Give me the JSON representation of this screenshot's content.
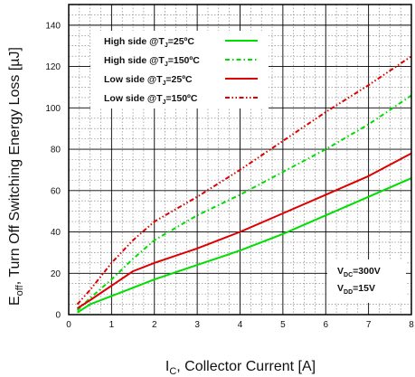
{
  "chart_data": {
    "type": "line",
    "xlabel": {
      "main": "I",
      "sub": "C",
      "rest": ", Collector Current [A]"
    },
    "ylabel": {
      "main": "E",
      "sub": "off",
      "rest": ", Turn Off Switching Energy Loss [µJ]"
    },
    "xlim": [
      0,
      8
    ],
    "ylim": [
      0,
      150
    ],
    "xticks": [
      0,
      1,
      2,
      3,
      4,
      5,
      6,
      7,
      8
    ],
    "yticks": [
      0,
      20,
      40,
      60,
      80,
      100,
      120,
      140
    ],
    "grid": true,
    "legend_position": "top-left",
    "series": [
      {
        "name": "High side @T J =25ºC",
        "name_parts": {
          "pre": "High side @T",
          "sub": "J",
          "post": "=25ºC"
        },
        "color": "#00dd00",
        "dash": "solid",
        "x": [
          0.2,
          0.5,
          1,
          1.5,
          2,
          3,
          4,
          5,
          6,
          7,
          8
        ],
        "y": [
          1,
          5,
          9,
          13,
          17,
          24,
          31,
          39,
          48,
          57,
          66
        ]
      },
      {
        "name": "High side @T J =150ºC",
        "name_parts": {
          "pre": "High side @T",
          "sub": "J",
          "post": "=150ºC"
        },
        "color": "#00dd00",
        "dash": "dashdot",
        "x": [
          0.2,
          0.5,
          1,
          1.5,
          2,
          3,
          4,
          5,
          6,
          7,
          8
        ],
        "y": [
          2,
          8,
          17,
          27,
          36,
          48,
          58,
          69,
          80,
          92,
          106
        ]
      },
      {
        "name": "Low side @T J =25ºC",
        "name_parts": {
          "pre": "Low side @T",
          "sub": "J",
          "post": "=25ºC"
        },
        "color": "#dd0000",
        "dash": "solid",
        "x": [
          0.2,
          0.5,
          1,
          1.5,
          2,
          3,
          4,
          5,
          6,
          7,
          8
        ],
        "y": [
          3,
          7,
          14,
          21,
          25,
          32,
          40,
          49,
          58,
          67,
          78
        ]
      },
      {
        "name": "Low side @T J =150ºC",
        "name_parts": {
          "pre": "Low side @T",
          "sub": "J",
          "post": "=150ºC"
        },
        "color": "#dd0000",
        "dash": "dashdotdot",
        "x": [
          0.2,
          0.5,
          1,
          1.5,
          2,
          3,
          4,
          5,
          6,
          7,
          8
        ],
        "y": [
          5,
          12,
          25,
          36,
          45,
          57,
          70,
          84,
          98,
          111,
          125
        ]
      }
    ],
    "annotations": [
      {
        "main": "V",
        "sub": "DC",
        "rest": "=300V"
      },
      {
        "main": "V",
        "sub": "DD",
        "rest": "=15V"
      }
    ]
  }
}
